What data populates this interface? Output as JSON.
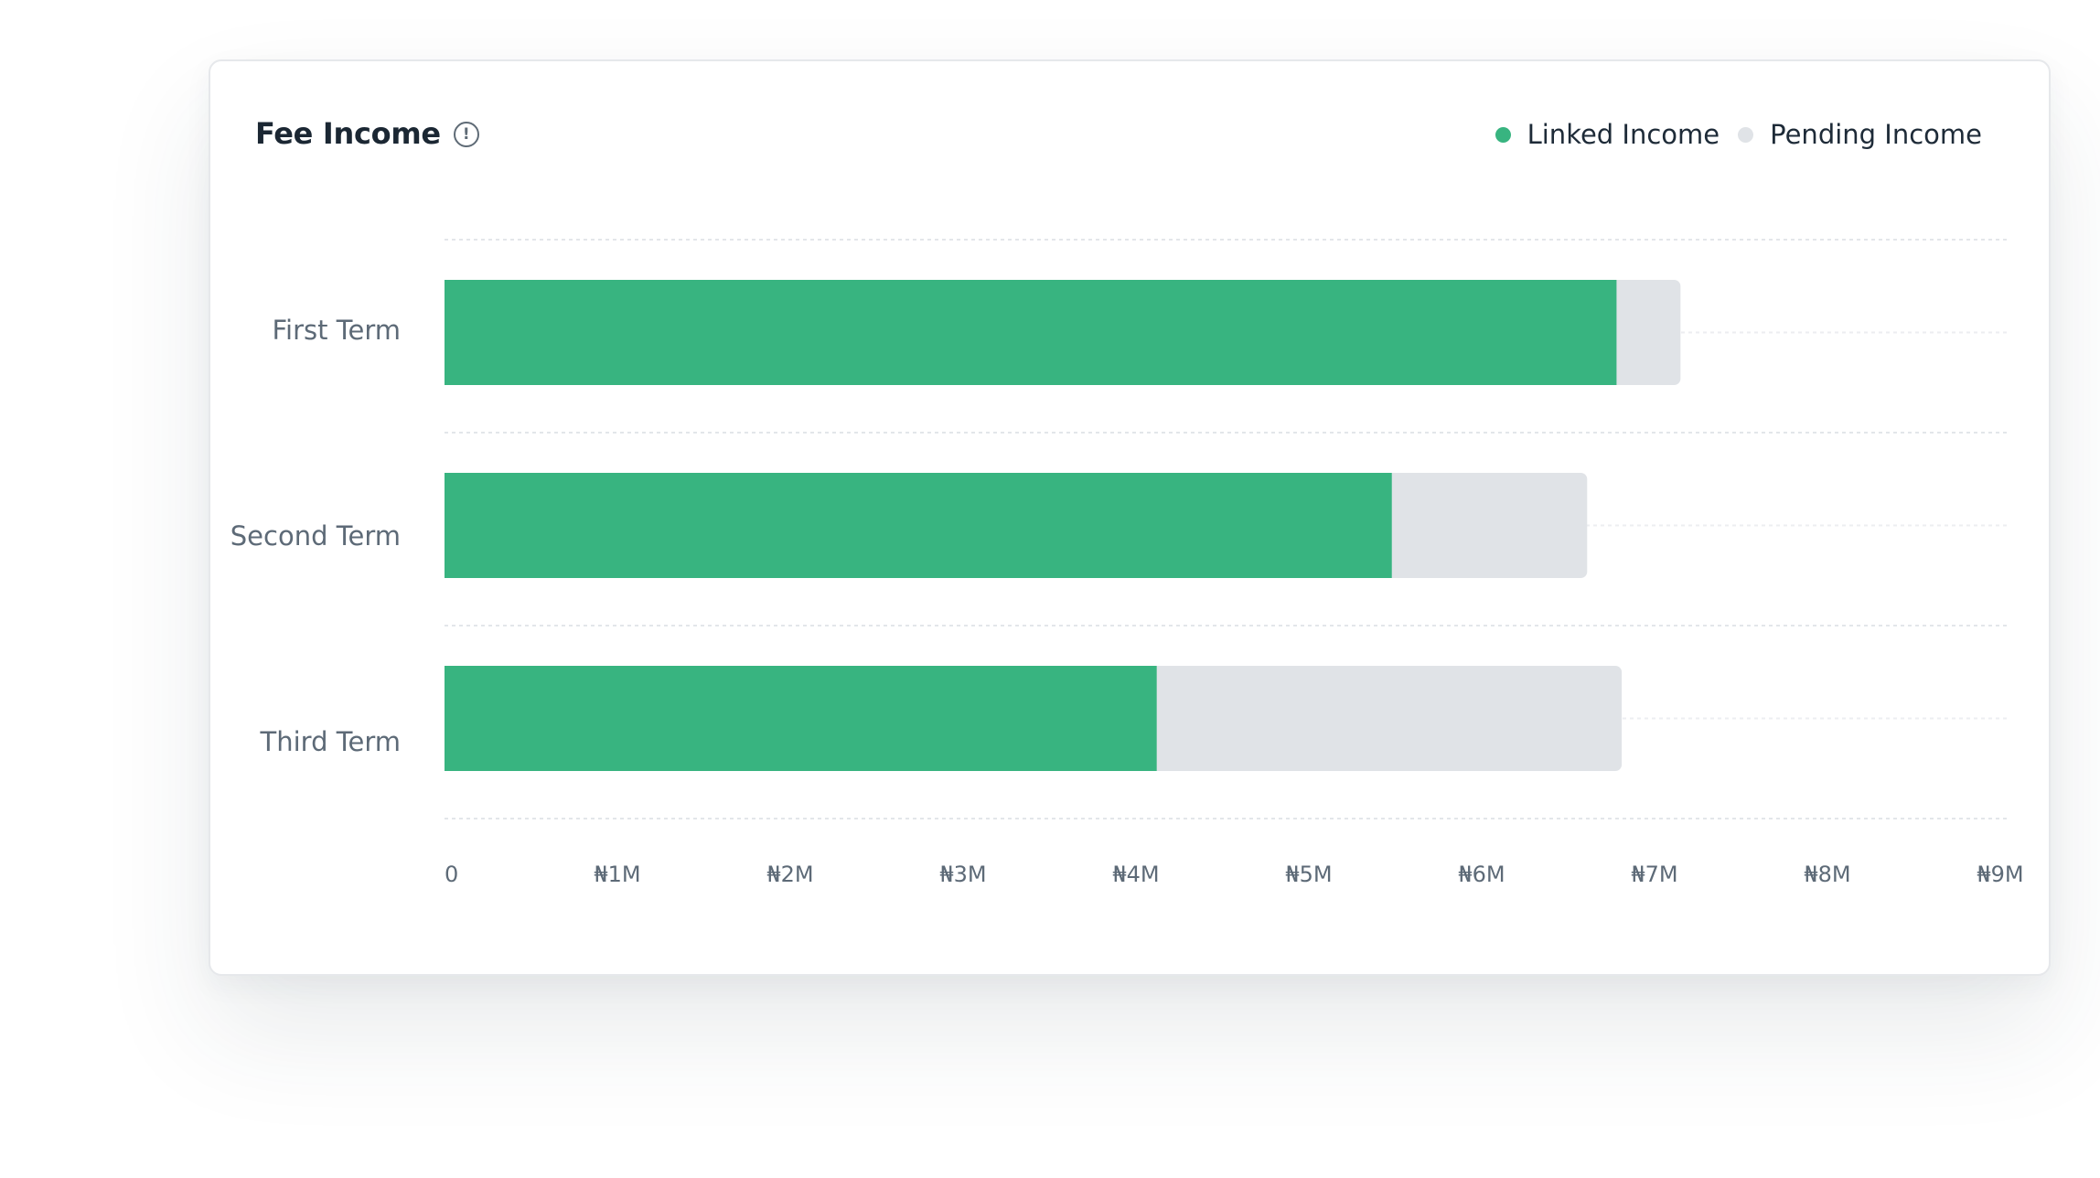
{
  "card": {
    "title": "Fee Income"
  },
  "icons": {
    "info": "info-circle-icon",
    "info_glyph": "!"
  },
  "chart_data": {
    "type": "bar",
    "orientation": "horizontal",
    "stacked": true,
    "title": "Fee Income",
    "categories": [
      "First Term",
      "Second Term",
      "Third Term"
    ],
    "series": [
      {
        "name": "Linked Income",
        "color": "#38b480",
        "values": [
          6.78,
          5.48,
          4.12
        ]
      },
      {
        "name": "Pending Income",
        "color": "#e0e3e7",
        "values": [
          0.37,
          1.13,
          2.69
        ]
      }
    ],
    "x_ticks": [
      "0",
      "₦1M",
      "₦2M",
      "₦3M",
      "₦4M",
      "₦5M",
      "₦6M",
      "₦7M",
      "₦8M",
      "₦9M"
    ],
    "xlim": [
      0,
      9
    ],
    "unit": "₦M",
    "grid": true,
    "legend_position": "top-right"
  }
}
